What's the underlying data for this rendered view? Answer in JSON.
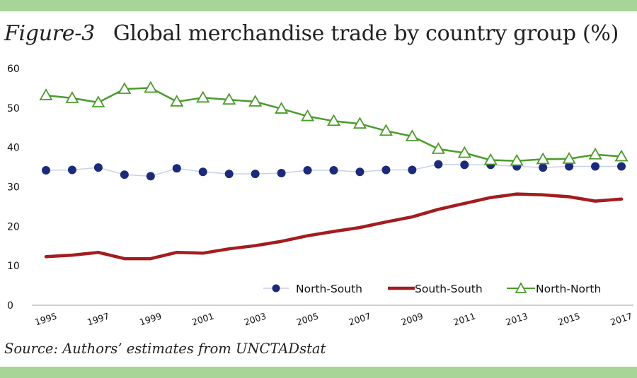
{
  "figure": {
    "label": "Figure-3",
    "title": "Global merchandise trade by country group (%)",
    "source": "Source: Authors’ estimates from UNCTADstat"
  },
  "colors": {
    "band": "#a6d597",
    "north_south": "#1c2a7a",
    "north_south_line": "#c9d0ea",
    "south_south": "#a21c20",
    "north_north": "#4b9a2c",
    "axis": "#bfbfbf"
  },
  "chart_data": {
    "type": "line",
    "title": "Global merchandise trade by country group (%)",
    "xlabel": "",
    "ylabel": "",
    "ylim": [
      0,
      60
    ],
    "yticks": [
      0,
      10,
      20,
      30,
      40,
      50,
      60
    ],
    "grid": false,
    "legend_position": "bottom-right",
    "x": [
      1995,
      1996,
      1997,
      1998,
      1999,
      2000,
      2001,
      2002,
      2003,
      2004,
      2005,
      2006,
      2007,
      2008,
      2009,
      2010,
      2011,
      2012,
      2013,
      2014,
      2015,
      2016,
      2017
    ],
    "xtick_labels": [
      "1995",
      "1997",
      "1999",
      "2001",
      "2003",
      "2005",
      "2007",
      "2009",
      "2011",
      "2013",
      "2015",
      "2017"
    ],
    "series": [
      {
        "name": "North-South",
        "marker": "circle",
        "values": [
          34.2,
          34.3,
          34.9,
          33.1,
          32.7,
          34.7,
          33.8,
          33.3,
          33.3,
          33.5,
          34.2,
          34.2,
          33.8,
          34.3,
          34.3,
          35.7,
          35.6,
          35.6,
          35.2,
          34.9,
          35.2,
          35.2,
          35.2
        ]
      },
      {
        "name": "South-South",
        "marker": "none",
        "values": [
          12.3,
          12.7,
          13.4,
          11.8,
          11.8,
          13.4,
          13.2,
          14.3,
          15.1,
          16.2,
          17.6,
          18.7,
          19.7,
          21.1,
          22.4,
          24.3,
          25.8,
          27.3,
          28.2,
          28.0,
          27.5,
          26.4,
          26.9
        ]
      },
      {
        "name": "North-North",
        "marker": "triangle-open",
        "values": [
          53.2,
          52.5,
          51.4,
          54.8,
          55.1,
          51.6,
          52.6,
          52.1,
          51.6,
          49.8,
          47.9,
          46.7,
          46.0,
          44.2,
          42.8,
          39.6,
          38.6,
          36.8,
          36.6,
          37.0,
          37.1,
          38.2,
          37.7
        ]
      }
    ]
  }
}
